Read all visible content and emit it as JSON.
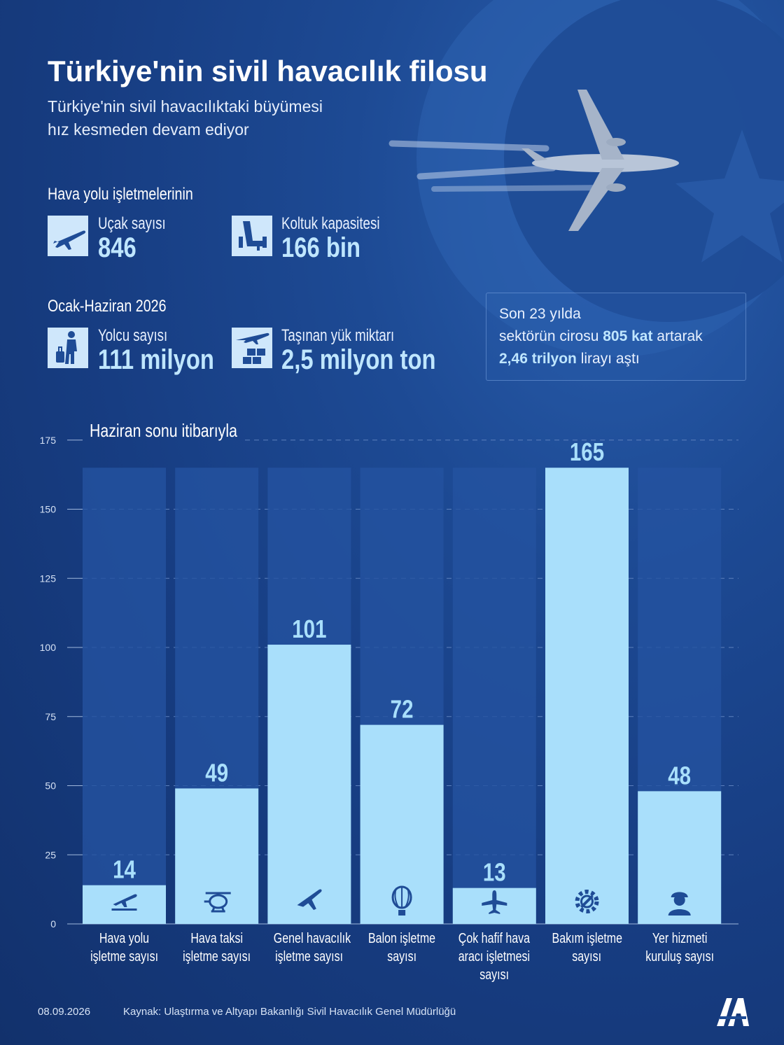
{
  "header": {
    "title": "Türkiye'nin sivil havacılık filosu",
    "subtitle_line1": "Türkiye'nin sivil havacılıktaki büyümesi",
    "subtitle_line2": "hız kesmeden devam ediyor"
  },
  "section1": {
    "heading": "Hava yolu işletmelerinin",
    "stats": [
      {
        "label": "Uçak sayısı",
        "value": "846",
        "icon": "airplane-icon"
      },
      {
        "label": "Koltuk kapasitesi",
        "value": "166 bin",
        "icon": "seat-icon"
      }
    ]
  },
  "section2": {
    "heading": "Ocak-Haziran 2026",
    "stats": [
      {
        "label": "Yolcu sayısı",
        "value": "111 milyon",
        "icon": "passenger-icon"
      },
      {
        "label": "Taşınan yük miktarı",
        "value": "2,5 milyon ton",
        "icon": "cargo-icon"
      }
    ]
  },
  "highlight": {
    "line1": "Son 23 yılda",
    "line2_pre": "sektörün cirosu ",
    "line2_bold": "805 kat",
    "line2_post": " artarak",
    "line3_bold": "2,46 trilyon",
    "line3_post": " lirayı aştı"
  },
  "chart_data": {
    "type": "bar",
    "title": "Haziran sonu itibarıyla",
    "categories": [
      [
        "Hava yolu",
        "işletme sayısı"
      ],
      [
        "Hava taksi",
        "işletme sayısı"
      ],
      [
        "Genel havacılık",
        "işletme sayısı"
      ],
      [
        "Balon işletme",
        "sayısı"
      ],
      [
        "Çok hafif hava",
        "aracı işletmesi",
        "sayısı"
      ],
      [
        "Bakım işletme",
        "sayısı"
      ],
      [
        "Yer hizmeti",
        "kuruluş sayısı"
      ]
    ],
    "values": [
      14,
      49,
      101,
      72,
      13,
      165,
      48
    ],
    "icons": [
      "plane-takeoff-icon",
      "helicopter-icon",
      "small-plane-icon",
      "balloon-icon",
      "light-aircraft-icon",
      "gear-wrench-icon",
      "worker-icon"
    ],
    "yticks": [
      0,
      25,
      50,
      75,
      100,
      125,
      150,
      175
    ],
    "ylim": [
      0,
      175
    ],
    "grid": true,
    "colors": {
      "bar": "#a9dffb",
      "track": "#2453a0",
      "grid": "#5c80bd",
      "value": "#a9dffb"
    }
  },
  "footer": {
    "date": "08.09.2026",
    "source": "Kaynak: Ulaştırma ve Altyapı Bakanlığı Sivil Havacılık Genel Müdürlüğü",
    "logo": "AA"
  }
}
